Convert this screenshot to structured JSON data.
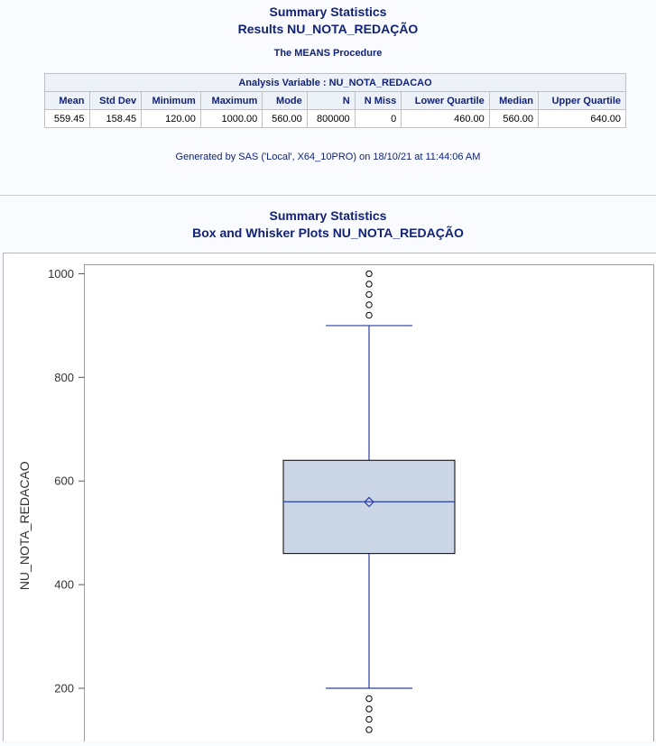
{
  "report": {
    "title_line1": "Summary Statistics",
    "title_line2": "Results NU_NOTA_REDAÇÃO",
    "procedure": "The MEANS Procedure",
    "footer": "Generated by SAS ('Local', X64_10PRO) on 18/10/21 at 11:44:06 AM"
  },
  "table": {
    "caption": "Analysis Variable : NU_NOTA_REDACAO",
    "headers": [
      "Mean",
      "Std Dev",
      "Minimum",
      "Maximum",
      "Mode",
      "N",
      "N Miss",
      "Lower Quartile",
      "Median",
      "Upper Quartile"
    ],
    "row": [
      "559.45",
      "158.45",
      "120.00",
      "1000.00",
      "560.00",
      "800000",
      "0",
      "460.00",
      "560.00",
      "640.00"
    ]
  },
  "plot_section": {
    "title_line1": "Summary Statistics",
    "title_line2": "Box and Whisker Plots NU_NOTA_REDAÇÃO"
  },
  "chart_data": {
    "type": "box",
    "ylabel": "NU_NOTA_REDACAO",
    "xlabel": "",
    "yticks": [
      "200",
      "400",
      "600",
      "800",
      "1000"
    ],
    "ytick_values": [
      200,
      400,
      600,
      800,
      1000
    ],
    "ylim": [
      120,
      1000
    ],
    "box": {
      "q1": 460,
      "median": 560,
      "q3": 640,
      "mean": 559.45,
      "whisker_low": 200,
      "whisker_high": 900
    },
    "outliers_high": [
      920,
      940,
      960,
      980,
      1000
    ],
    "outliers_low": [
      120,
      140,
      160,
      180
    ],
    "colors": {
      "box_fill": "#cad5e5",
      "box_edge": "#000000",
      "line": "#2a3ea4",
      "outlier": "#000000"
    }
  }
}
